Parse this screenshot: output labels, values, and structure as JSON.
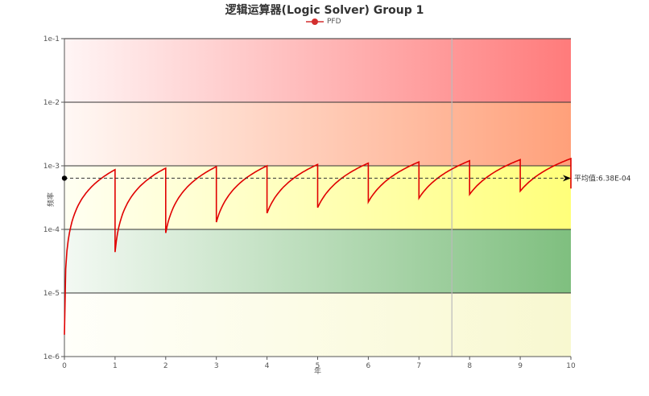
{
  "title": "逻辑运算器(Logic Solver) Group 1",
  "legend": {
    "label": "PFD",
    "color": "#d32f2f"
  },
  "avg_label": "平均值:6.38E-04",
  "colors": {
    "line": "#e00000",
    "band_red": "#ff7b7b",
    "band_orange": "#ffa07a",
    "band_yellow": "#ffff80",
    "band_green": "#7fbf7f",
    "band_bottom": "#f8f8d0"
  },
  "chart_data": {
    "type": "line",
    "title": "逻辑运算器(Logic Solver) Group 1",
    "xlabel": "年",
    "ylabel": "频率",
    "yscale": "log",
    "xlim": [
      0,
      10
    ],
    "ylim": [
      1e-06,
      0.1
    ],
    "x_ticks": [
      "0",
      "1",
      "2",
      "3",
      "4",
      "5",
      "6",
      "7",
      "8",
      "9",
      "10"
    ],
    "y_ticks": [
      "1e-6",
      "1e-5",
      "1e-4",
      "1e-3",
      "1e-2",
      "1e-1"
    ],
    "legend": [
      "PFD"
    ],
    "series": [
      {
        "name": "PFD",
        "description": "Sawtooth: PFD rises within each year, drops at each proof test",
        "peaks": [
          {
            "x": 1,
            "y": 0.00087
          },
          {
            "x": 2,
            "y": 0.00092
          },
          {
            "x": 3,
            "y": 0.00097
          },
          {
            "x": 4,
            "y": 0.001
          },
          {
            "x": 5,
            "y": 0.00105
          },
          {
            "x": 6,
            "y": 0.0011
          },
          {
            "x": 7,
            "y": 0.00115
          },
          {
            "x": 8,
            "y": 0.0012
          },
          {
            "x": 9,
            "y": 0.00125
          },
          {
            "x": 10,
            "y": 0.0013
          }
        ],
        "troughs": [
          {
            "x": 0,
            "y": 2.2e-06
          },
          {
            "x": 1,
            "y": 4.4e-05
          },
          {
            "x": 2,
            "y": 8.8e-05
          },
          {
            "x": 3,
            "y": 0.00013
          },
          {
            "x": 4,
            "y": 0.00018
          },
          {
            "x": 5,
            "y": 0.00022
          },
          {
            "x": 6,
            "y": 0.00027
          },
          {
            "x": 7,
            "y": 0.00031
          },
          {
            "x": 8,
            "y": 0.000355
          },
          {
            "x": 9,
            "y": 0.0004
          },
          {
            "x": 10,
            "y": 0.00044
          }
        ]
      }
    ],
    "annotations": [
      {
        "type": "hline",
        "y": 0.000638,
        "label": "平均值:6.38E-04",
        "style": "dashed"
      },
      {
        "type": "vline",
        "x": 7.65,
        "color": "#bbbbbb"
      }
    ],
    "bands": [
      {
        "from": 0.01,
        "to": 0.1,
        "color": "red"
      },
      {
        "from": 0.001,
        "to": 0.01,
        "color": "orange"
      },
      {
        "from": 0.0001,
        "to": 0.001,
        "color": "yellow"
      },
      {
        "from": 1e-05,
        "to": 0.0001,
        "color": "green"
      },
      {
        "from": 1e-06,
        "to": 1e-05,
        "color": "pale-yellow"
      }
    ]
  }
}
